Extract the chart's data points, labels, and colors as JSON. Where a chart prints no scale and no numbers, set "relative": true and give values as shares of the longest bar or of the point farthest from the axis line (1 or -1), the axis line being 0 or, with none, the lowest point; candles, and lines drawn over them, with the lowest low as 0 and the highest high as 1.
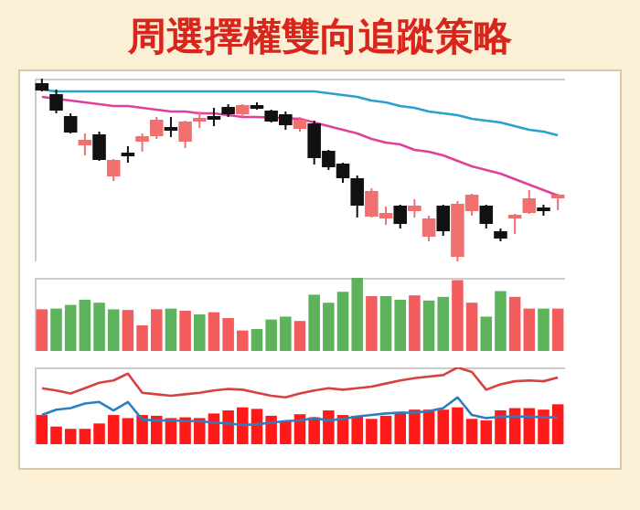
{
  "chart_data": [
    {
      "type": "candlestick",
      "title": "周選擇權雙向追蹤策略",
      "relative": true,
      "categories": [
        null,
        null,
        null,
        null,
        null,
        null,
        null,
        null,
        null,
        null,
        null,
        null,
        null,
        null,
        null,
        null,
        null,
        null,
        null,
        null,
        null,
        null,
        null,
        null,
        null,
        null,
        null,
        null,
        null,
        null,
        null,
        null,
        null,
        null,
        null,
        null,
        null
      ],
      "ohlc": [
        [
          0.97,
          1.0,
          0.93,
          0.94
        ],
        [
          0.91,
          0.94,
          0.81,
          0.83
        ],
        [
          0.79,
          0.81,
          0.7,
          0.71
        ],
        [
          0.64,
          0.7,
          0.58,
          0.66
        ],
        [
          0.69,
          0.71,
          0.55,
          0.56
        ],
        [
          0.47,
          0.56,
          0.44,
          0.55
        ],
        [
          0.59,
          0.63,
          0.54,
          0.58
        ],
        [
          0.66,
          0.7,
          0.6,
          0.68
        ],
        [
          0.69,
          0.79,
          0.67,
          0.77
        ],
        [
          0.73,
          0.79,
          0.68,
          0.72
        ],
        [
          0.66,
          0.77,
          0.62,
          0.76
        ],
        [
          0.77,
          0.82,
          0.73,
          0.78
        ],
        [
          0.79,
          0.84,
          0.74,
          0.78
        ],
        [
          0.84,
          0.86,
          0.79,
          0.81
        ],
        [
          0.81,
          0.86,
          0.79,
          0.85
        ],
        [
          0.85,
          0.87,
          0.83,
          0.84
        ],
        [
          0.82,
          0.83,
          0.76,
          0.77
        ],
        [
          0.8,
          0.82,
          0.72,
          0.75
        ],
        [
          0.73,
          0.79,
          0.71,
          0.77
        ],
        [
          0.75,
          0.77,
          0.53,
          0.57
        ],
        [
          0.6,
          0.61,
          0.5,
          0.52
        ],
        [
          0.53,
          0.54,
          0.43,
          0.46
        ],
        [
          0.45,
          0.47,
          0.24,
          0.31
        ],
        [
          0.25,
          0.4,
          0.24,
          0.38
        ],
        [
          0.24,
          0.3,
          0.2,
          0.26
        ],
        [
          0.3,
          0.31,
          0.18,
          0.21
        ],
        [
          0.28,
          0.34,
          0.24,
          0.3
        ],
        [
          0.14,
          0.25,
          0.11,
          0.23
        ],
        [
          0.3,
          0.31,
          0.14,
          0.17
        ],
        [
          0.03,
          0.33,
          0.0,
          0.31
        ],
        [
          0.28,
          0.37,
          0.25,
          0.36
        ],
        [
          0.3,
          0.31,
          0.18,
          0.21
        ],
        [
          0.16,
          0.18,
          0.11,
          0.13
        ],
        [
          0.24,
          0.26,
          0.15,
          0.25
        ],
        [
          0.27,
          0.39,
          0.26,
          0.34
        ],
        [
          0.29,
          0.31,
          0.25,
          0.28
        ],
        [
          0.35,
          0.37,
          0.28,
          0.36
        ]
      ],
      "colors": [
        "#111111",
        "#111111",
        "#111111",
        "#f07070",
        "#111111",
        "#f07070",
        "#111111",
        "#f07070",
        "#f07070",
        "#111111",
        "#f07070",
        "#f07070",
        "#111111",
        "#111111",
        "#f07070",
        "#111111",
        "#111111",
        "#111111",
        "#f07070",
        "#111111",
        "#111111",
        "#111111",
        "#111111",
        "#f07070",
        "#f07070",
        "#111111",
        "#f07070",
        "#f07070",
        "#111111",
        "#f07070",
        "#f07070",
        "#111111",
        "#111111",
        "#f07070",
        "#f07070",
        "#111111",
        "#f07070"
      ],
      "series": [
        {
          "type": "line",
          "color": "#e0409a",
          "values": [
            0.9,
            0.89,
            0.88,
            0.87,
            0.86,
            0.85,
            0.85,
            0.84,
            0.83,
            0.82,
            0.82,
            0.81,
            0.81,
            0.8,
            0.79,
            0.79,
            null,
            null,
            0.78,
            0.76,
            0.74,
            0.72,
            0.7,
            0.67,
            0.65,
            0.64,
            0.61,
            0.6,
            0.58,
            0.55,
            0.52,
            0.5,
            0.48,
            0.45,
            0.42,
            0.39,
            0.36
          ]
        },
        {
          "type": "line",
          "color": "#2a9fd0",
          "values": [
            0.94,
            0.93,
            0.93,
            0.93,
            0.93,
            0.93,
            0.93,
            0.93,
            0.93,
            0.93,
            0.93,
            0.93,
            0.93,
            0.93,
            0.93,
            0.93,
            0.93,
            0.93,
            0.93,
            0.93,
            0.92,
            0.91,
            0.9,
            0.88,
            0.87,
            0.85,
            0.84,
            0.82,
            0.81,
            0.8,
            0.78,
            0.77,
            0.76,
            0.74,
            0.72,
            0.71,
            0.69
          ]
        }
      ]
    },
    {
      "type": "bar",
      "relative": true,
      "categories": [
        null,
        null,
        null,
        null,
        null,
        null,
        null,
        null,
        null,
        null,
        null,
        null,
        null,
        null,
        null,
        null,
        null,
        null,
        null,
        null,
        null,
        null,
        null,
        null,
        null,
        null,
        null,
        null,
        null,
        null,
        null,
        null,
        null,
        null,
        null,
        null,
        null
      ],
      "values": [
        0.57,
        0.58,
        0.63,
        0.7,
        0.66,
        0.57,
        0.56,
        0.35,
        0.57,
        0.58,
        0.55,
        0.5,
        0.53,
        0.45,
        0.28,
        0.3,
        0.43,
        0.47,
        0.41,
        0.77,
        0.66,
        0.81,
        1.0,
        0.75,
        0.75,
        0.7,
        0.76,
        0.69,
        0.74,
        0.97,
        0.66,
        0.47,
        0.82,
        0.74,
        0.58,
        0.58,
        0.58
      ],
      "colors": [
        "#f25c5c",
        "#5cb35c",
        "#5cb35c",
        "#5cb35c",
        "#5cb35c",
        "#5cb35c",
        "#f25c5c",
        "#f25c5c",
        "#f25c5c",
        "#5cb35c",
        "#f25c5c",
        "#5cb35c",
        "#f25c5c",
        "#f25c5c",
        "#f25c5c",
        "#5cb35c",
        "#5cb35c",
        "#5cb35c",
        "#f25c5c",
        "#5cb35c",
        "#5cb35c",
        "#5cb35c",
        "#5cb35c",
        "#f25c5c",
        "#5cb35c",
        "#5cb35c",
        "#f25c5c",
        "#5cb35c",
        "#5cb35c",
        "#f25c5c",
        "#f25c5c",
        "#5cb35c",
        "#5cb35c",
        "#f25c5c",
        "#f25c5c",
        "#5cb35c",
        "#f25c5c"
      ]
    },
    {
      "type": "bar",
      "relative": true,
      "categories": [
        null,
        null,
        null,
        null,
        null,
        null,
        null,
        null,
        null,
        null,
        null,
        null,
        null,
        null,
        null,
        null,
        null,
        null,
        null,
        null,
        null,
        null,
        null,
        null,
        null,
        null,
        null,
        null,
        null,
        null,
        null,
        null,
        null,
        null,
        null,
        null,
        null
      ],
      "series": [
        {
          "type": "bar",
          "color": "#ff1a1a",
          "values": [
            0.38,
            0.23,
            0.2,
            0.2,
            0.27,
            0.38,
            0.34,
            0.38,
            0.37,
            0.34,
            0.35,
            0.34,
            0.4,
            0.44,
            0.48,
            0.46,
            0.37,
            0.3,
            0.39,
            0.35,
            0.44,
            0.38,
            0.37,
            0.33,
            0.37,
            0.42,
            0.45,
            0.45,
            0.45,
            0.48,
            0.33,
            0.31,
            0.44,
            0.47,
            0.47,
            0.45,
            0.52
          ]
        },
        {
          "type": "line",
          "color": "#d94040",
          "values": [
            0.73,
            0.7,
            0.66,
            0.73,
            0.8,
            0.83,
            0.92,
            0.67,
            0.65,
            0.63,
            0.65,
            0.67,
            0.7,
            0.72,
            0.71,
            0.67,
            0.63,
            0.61,
            0.66,
            0.7,
            0.73,
            0.71,
            0.73,
            0.75,
            0.79,
            0.83,
            0.86,
            0.88,
            0.9,
            1.0,
            0.94,
            0.71,
            0.78,
            0.82,
            0.83,
            0.82,
            0.87
          ]
        },
        {
          "type": "line",
          "color": "#2a7fc0",
          "values": [
            0.38,
            0.45,
            0.47,
            0.53,
            0.55,
            0.44,
            0.55,
            0.32,
            0.31,
            0.31,
            0.3,
            0.3,
            0.28,
            0.27,
            0.25,
            0.26,
            0.28,
            0.3,
            0.31,
            0.34,
            0.31,
            0.33,
            0.36,
            0.38,
            0.4,
            0.41,
            0.41,
            0.43,
            0.47,
            0.61,
            0.38,
            0.34,
            0.36,
            0.36,
            0.36,
            0.35,
            0.35
          ]
        }
      ]
    }
  ]
}
